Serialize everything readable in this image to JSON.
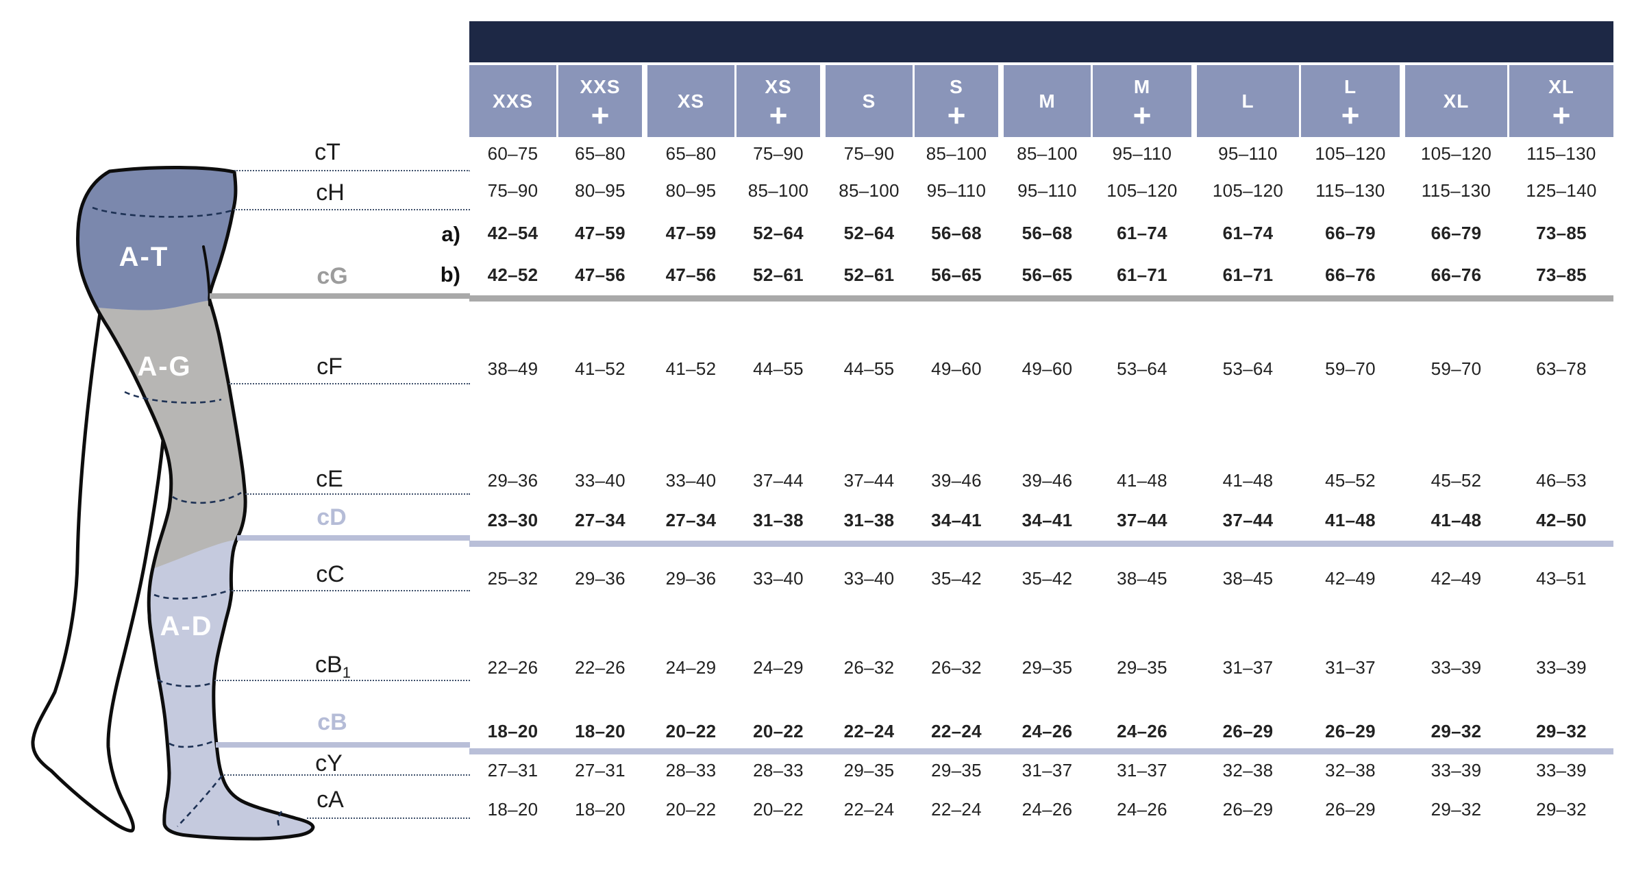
{
  "table": {
    "plus_symbol": "+",
    "sizes": [
      {
        "label": "XXS",
        "plus": false
      },
      {
        "label": "XXS",
        "plus": true
      },
      {
        "label": "XS",
        "plus": false
      },
      {
        "label": "XS",
        "plus": true
      },
      {
        "label": "S",
        "plus": false
      },
      {
        "label": "S",
        "plus": true
      },
      {
        "label": "M",
        "plus": false
      },
      {
        "label": "M",
        "plus": true
      },
      {
        "label": "L",
        "plus": false
      },
      {
        "label": "L",
        "plus": true
      },
      {
        "label": "XL",
        "plus": false
      },
      {
        "label": "XL",
        "plus": true
      }
    ],
    "bands": [
      {
        "rows": [
          {
            "id": "cT",
            "bold": false,
            "values": [
              "60–75",
              "65–80",
              "65–80",
              "75–90",
              "75–90",
              "85–100",
              "85–100",
              "95–110",
              "95–110",
              "105–120",
              "105–120",
              "115–130"
            ]
          },
          {
            "id": "cH",
            "bold": false,
            "values": [
              "75–90",
              "80–95",
              "80–95",
              "85–100",
              "85–100",
              "95–110",
              "95–110",
              "105–120",
              "105–120",
              "115–130",
              "115–130",
              "125–140"
            ]
          },
          {
            "id": "cG-a",
            "bold": true,
            "values": [
              "42–54",
              "47–59",
              "47–59",
              "52–64",
              "52–64",
              "56–68",
              "56–68",
              "61–74",
              "61–74",
              "66–79",
              "66–79",
              "73–85"
            ]
          },
          {
            "id": "cG-b",
            "bold": true,
            "values": [
              "42–52",
              "47–56",
              "47–56",
              "52–61",
              "52–61",
              "56–65",
              "56–65",
              "61–71",
              "61–71",
              "66–76",
              "66–76",
              "73–85"
            ]
          }
        ]
      },
      {
        "rows": [
          {
            "id": "cF",
            "bold": false,
            "values": [
              "38–49",
              "41–52",
              "41–52",
              "44–55",
              "44–55",
              "49–60",
              "49–60",
              "53–64",
              "53–64",
              "59–70",
              "59–70",
              "63–78"
            ]
          },
          {
            "id": "cE",
            "bold": false,
            "values": [
              "29–36",
              "33–40",
              "33–40",
              "37–44",
              "37–44",
              "39–46",
              "39–46",
              "41–48",
              "41–48",
              "45–52",
              "45–52",
              "46–53"
            ]
          },
          {
            "id": "cD",
            "bold": true,
            "values": [
              "23–30",
              "27–34",
              "27–34",
              "31–38",
              "31–38",
              "34–41",
              "34–41",
              "37–44",
              "37–44",
              "41–48",
              "41–48",
              "42–50"
            ]
          }
        ]
      },
      {
        "rows": [
          {
            "id": "cC",
            "bold": false,
            "values": [
              "25–32",
              "29–36",
              "29–36",
              "33–40",
              "33–40",
              "35–42",
              "35–42",
              "38–45",
              "38–45",
              "42–49",
              "42–49",
              "43–51"
            ]
          },
          {
            "id": "cB1",
            "bold": false,
            "values": [
              "22–26",
              "22–26",
              "24–29",
              "24–29",
              "26–32",
              "26–32",
              "29–35",
              "29–35",
              "31–37",
              "31–37",
              "33–39",
              "33–39"
            ]
          },
          {
            "id": "cB",
            "bold": true,
            "values": [
              "18–20",
              "18–20",
              "20–22",
              "20–22",
              "22–24",
              "22–24",
              "24–26",
              "24–26",
              "26–29",
              "26–29",
              "29–32",
              "29–32"
            ]
          }
        ]
      },
      {
        "rows": [
          {
            "id": "cY",
            "bold": false,
            "values": [
              "27–31",
              "27–31",
              "28–33",
              "28–33",
              "29–35",
              "29–35",
              "31–37",
              "31–37",
              "32–38",
              "32–38",
              "33–39",
              "33–39"
            ]
          },
          {
            "id": "cA",
            "bold": false,
            "values": [
              "18–20",
              "18–20",
              "20–22",
              "20–22",
              "22–24",
              "22–24",
              "24–26",
              "24–26",
              "26–29",
              "26–29",
              "29–32",
              "29–32"
            ]
          }
        ]
      }
    ]
  },
  "leg": {
    "zones": [
      {
        "id": "A-T",
        "label": "A-T"
      },
      {
        "id": "A-G",
        "label": "A-G"
      },
      {
        "id": "A-D",
        "label": "A-D"
      }
    ],
    "measurements": [
      {
        "id": "cT",
        "label": "cT",
        "sub": ""
      },
      {
        "id": "cH",
        "label": "cH",
        "sub": ""
      },
      {
        "id": "cG",
        "label": "cG",
        "sub": "",
        "variants": [
          "a)",
          "b)"
        ]
      },
      {
        "id": "cF",
        "label": "cF",
        "sub": ""
      },
      {
        "id": "cE",
        "label": "cE",
        "sub": ""
      },
      {
        "id": "cD",
        "label": "cD",
        "sub": ""
      },
      {
        "id": "cC",
        "label": "cC",
        "sub": ""
      },
      {
        "id": "cB1",
        "label": "cB",
        "sub": "1"
      },
      {
        "id": "cB",
        "label": "cB",
        "sub": ""
      },
      {
        "id": "cY",
        "label": "cY",
        "sub": ""
      },
      {
        "id": "cA",
        "label": "cA",
        "sub": ""
      }
    ]
  },
  "colors": {
    "navy_bar": "#1d2845",
    "header_cell": "#8a95b9",
    "band_hip": "#d6dae6",
    "band_thigh": "#e9e9e6",
    "band_calf": "#edeff4",
    "band_foot": "#eef0f5",
    "divider_gray": "#a9a9a9",
    "divider_lavender": "#b9bfd8",
    "zone_thigh": "#7b88ad",
    "zone_knee": "#b7b6b4",
    "zone_lower": "#c5cade",
    "dash_navy": "#1d3154",
    "label_gray": "#9c9c9c",
    "label_lavender": "#b5bcd7"
  }
}
